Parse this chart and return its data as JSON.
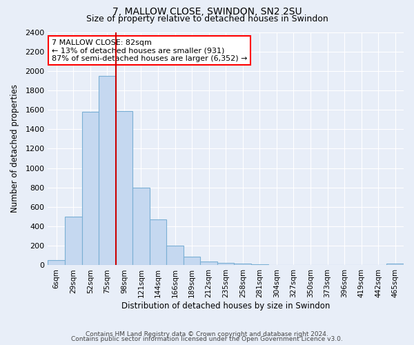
{
  "title": "7, MALLOW CLOSE, SWINDON, SN2 2SU",
  "subtitle": "Size of property relative to detached houses in Swindon",
  "xlabel": "Distribution of detached houses by size in Swindon",
  "ylabel": "Number of detached properties",
  "categories": [
    "6sqm",
    "29sqm",
    "52sqm",
    "75sqm",
    "98sqm",
    "121sqm",
    "144sqm",
    "166sqm",
    "189sqm",
    "212sqm",
    "235sqm",
    "258sqm",
    "281sqm",
    "304sqm",
    "327sqm",
    "350sqm",
    "373sqm",
    "396sqm",
    "419sqm",
    "442sqm",
    "465sqm"
  ],
  "values": [
    55,
    500,
    1580,
    1950,
    1590,
    800,
    475,
    200,
    85,
    40,
    28,
    17,
    8,
    5,
    3,
    2,
    1,
    1,
    1,
    1,
    15
  ],
  "bar_color": "#c5d8f0",
  "bar_edge_color": "#7aafd4",
  "vline_color": "#cc0000",
  "annotation_text": "7 MALLOW CLOSE: 82sqm\n← 13% of detached houses are smaller (931)\n87% of semi-detached houses are larger (6,352) →",
  "annotation_box_color": "white",
  "annotation_box_edge_color": "red",
  "ylim": [
    0,
    2400
  ],
  "yticks": [
    0,
    200,
    400,
    600,
    800,
    1000,
    1200,
    1400,
    1600,
    1800,
    2000,
    2200,
    2400
  ],
  "footer_line1": "Contains HM Land Registry data © Crown copyright and database right 2024.",
  "footer_line2": "Contains public sector information licensed under the Open Government Licence v3.0.",
  "background_color": "#e8eef8",
  "grid_color": "#ffffff"
}
